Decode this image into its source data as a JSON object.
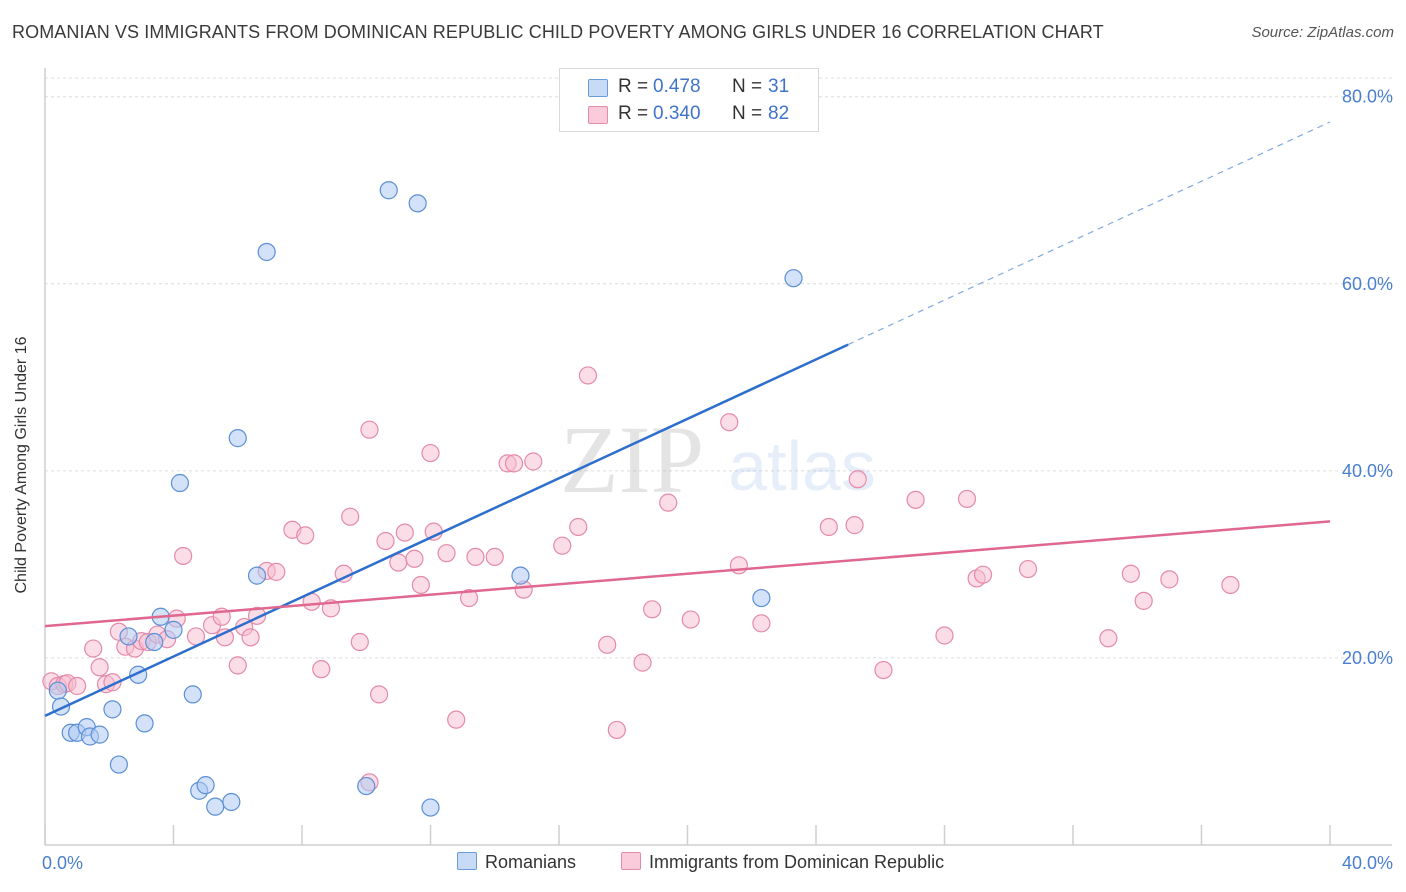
{
  "header": {
    "title": "ROMANIAN VS IMMIGRANTS FROM DOMINICAN REPUBLIC CHILD POVERTY AMONG GIRLS UNDER 16 CORRELATION CHART",
    "source": "Source: ZipAtlas.com"
  },
  "watermark": {
    "zip": "ZIP",
    "atlas": "atlas"
  },
  "legend": {
    "romanians": {
      "r_label": "R =",
      "r_value": "0.478",
      "n_label": "N =",
      "n_value": "31"
    },
    "dominican": {
      "r_label": "R =",
      "r_value": "0.340",
      "n_label": "N =",
      "n_value": "82"
    }
  },
  "bottom_legend": {
    "romanians": "Romanians",
    "dominican": "Immigrants from Dominican Republic"
  },
  "colors": {
    "romanians_fill": "#aecbf2",
    "romanians_stroke": "#5b8fd6",
    "romanians_line": "#2e6fcd",
    "dominican_fill": "#f7bcd0",
    "dominican_stroke": "#e48aaa",
    "dominican_line": "#e0688f",
    "grid": "#dcdcdc",
    "axis_tick_text": "#4a7fcf"
  },
  "chart_data": {
    "type": "scatter",
    "title": "ROMANIAN VS IMMIGRANTS FROM DOMINICAN REPUBLIC CHILD POVERTY AMONG GIRLS UNDER 16 CORRELATION CHART",
    "xlabel": "",
    "ylabel": "Child Poverty Among Girls Under 16",
    "xlim": [
      0,
      40
    ],
    "ylim": [
      0,
      82
    ],
    "x_tick_labels": [
      {
        "value": 0,
        "label": "0.0%"
      },
      {
        "value": 40,
        "label": "40.0%"
      }
    ],
    "x_minor_ticks": [
      0,
      4,
      8,
      12,
      16,
      20,
      24,
      28,
      32,
      36,
      40
    ],
    "y_ticks": [
      {
        "value": 20,
        "label": "20.0%"
      },
      {
        "value": 40,
        "label": "40.0%"
      },
      {
        "value": 60,
        "label": "60.0%"
      },
      {
        "value": 80,
        "label": "80.0%"
      }
    ],
    "grid": true,
    "legend_position": "top-center",
    "series": [
      {
        "name": "Romanians",
        "color": "#aecbf2",
        "points": [
          [
            0.4,
            16.5
          ],
          [
            0.5,
            14.8
          ],
          [
            0.8,
            12.0
          ],
          [
            1.0,
            12.0
          ],
          [
            1.3,
            12.6
          ],
          [
            1.4,
            11.6
          ],
          [
            1.7,
            11.8
          ],
          [
            2.1,
            14.5
          ],
          [
            2.3,
            8.6
          ],
          [
            2.6,
            22.3
          ],
          [
            2.9,
            18.2
          ],
          [
            3.1,
            13.0
          ],
          [
            3.4,
            21.7
          ],
          [
            3.6,
            24.4
          ],
          [
            4.0,
            23.0
          ],
          [
            4.2,
            38.7
          ],
          [
            4.6,
            16.1
          ],
          [
            4.8,
            5.8
          ],
          [
            5.0,
            6.4
          ],
          [
            5.3,
            4.1
          ],
          [
            5.8,
            4.6
          ],
          [
            6.0,
            43.5
          ],
          [
            6.6,
            28.8
          ],
          [
            6.9,
            63.4
          ],
          [
            10.0,
            6.3
          ],
          [
            10.7,
            70.0
          ],
          [
            11.6,
            68.6
          ],
          [
            12.0,
            4.0
          ],
          [
            14.8,
            28.8
          ],
          [
            22.3,
            26.4
          ],
          [
            23.3,
            60.6
          ]
        ],
        "trend": {
          "x": [
            0.0,
            25.0
          ],
          "y": [
            13.8,
            53.5
          ],
          "dashed_extension": {
            "x": [
              25.0,
              40.0
            ],
            "y": [
              53.5,
              77.3
            ]
          }
        }
      },
      {
        "name": "Immigrants from Dominican Republic",
        "color": "#f7bcd0",
        "points": [
          [
            0.2,
            17.5
          ],
          [
            0.4,
            17.0
          ],
          [
            0.6,
            17.2
          ],
          [
            0.7,
            17.3
          ],
          [
            1.0,
            17.0
          ],
          [
            1.5,
            21.0
          ],
          [
            1.7,
            19.0
          ],
          [
            1.9,
            17.2
          ],
          [
            2.1,
            17.4
          ],
          [
            2.3,
            22.8
          ],
          [
            2.5,
            21.2
          ],
          [
            2.8,
            21.0
          ],
          [
            3.0,
            21.8
          ],
          [
            3.2,
            21.7
          ],
          [
            3.5,
            22.5
          ],
          [
            3.8,
            22.0
          ],
          [
            4.1,
            24.2
          ],
          [
            4.3,
            30.9
          ],
          [
            4.7,
            22.3
          ],
          [
            5.2,
            23.5
          ],
          [
            5.5,
            24.4
          ],
          [
            5.6,
            22.2
          ],
          [
            6.0,
            19.2
          ],
          [
            6.2,
            23.3
          ],
          [
            6.4,
            22.2
          ],
          [
            6.6,
            24.5
          ],
          [
            6.9,
            29.3
          ],
          [
            7.2,
            29.2
          ],
          [
            7.7,
            33.7
          ],
          [
            8.1,
            33.1
          ],
          [
            8.3,
            26.0
          ],
          [
            8.6,
            18.8
          ],
          [
            8.9,
            25.3
          ],
          [
            9.3,
            29.0
          ],
          [
            9.5,
            35.1
          ],
          [
            9.8,
            21.7
          ],
          [
            10.1,
            44.4
          ],
          [
            10.4,
            16.1
          ],
          [
            10.6,
            32.5
          ],
          [
            10.1,
            6.7
          ],
          [
            11.0,
            30.2
          ],
          [
            11.2,
            33.4
          ],
          [
            11.5,
            30.6
          ],
          [
            11.7,
            27.8
          ],
          [
            12.0,
            41.9
          ],
          [
            12.1,
            33.5
          ],
          [
            12.5,
            31.2
          ],
          [
            12.8,
            13.4
          ],
          [
            13.2,
            26.4
          ],
          [
            13.4,
            30.8
          ],
          [
            14.0,
            30.8
          ],
          [
            14.4,
            40.8
          ],
          [
            14.6,
            40.8
          ],
          [
            14.9,
            27.3
          ],
          [
            15.2,
            41.0
          ],
          [
            16.1,
            32.0
          ],
          [
            16.6,
            34.0
          ],
          [
            16.9,
            50.2
          ],
          [
            17.5,
            21.4
          ],
          [
            17.8,
            12.3
          ],
          [
            18.6,
            19.5
          ],
          [
            18.9,
            25.2
          ],
          [
            19.4,
            36.6
          ],
          [
            20.1,
            24.1
          ],
          [
            21.3,
            45.2
          ],
          [
            21.6,
            29.9
          ],
          [
            22.3,
            23.7
          ],
          [
            24.4,
            34.0
          ],
          [
            25.2,
            34.2
          ],
          [
            25.3,
            39.1
          ],
          [
            26.1,
            18.7
          ],
          [
            27.1,
            36.9
          ],
          [
            28.0,
            22.4
          ],
          [
            28.7,
            37.0
          ],
          [
            29.0,
            28.5
          ],
          [
            29.2,
            28.9
          ],
          [
            30.6,
            29.5
          ],
          [
            33.1,
            22.1
          ],
          [
            33.8,
            29.0
          ],
          [
            34.2,
            26.1
          ],
          [
            35.0,
            28.4
          ],
          [
            36.9,
            27.8
          ]
        ],
        "trend": {
          "x": [
            0.0,
            40.0
          ],
          "y": [
            23.4,
            34.6
          ]
        }
      }
    ]
  }
}
